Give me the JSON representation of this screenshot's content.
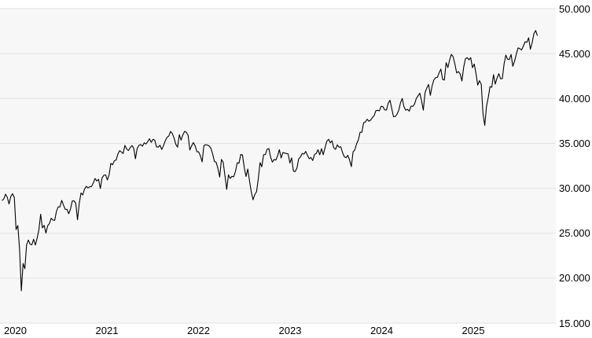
{
  "chart_data": {
    "type": "line",
    "title": "",
    "legend": "none",
    "grid": true,
    "colors": {
      "line": "#000000",
      "plot_background": "#f7f7f7",
      "gridline": "#e2e2e2",
      "page_background": "#ffffff",
      "text": "#000000"
    },
    "x_axis": {
      "ticks": [
        2020,
        2021,
        2022,
        2023,
        2024,
        2025
      ],
      "labels": [
        "2020",
        "2021",
        "2022",
        "2023",
        "2024",
        "2025"
      ]
    },
    "y_axis": {
      "position": "right",
      "min": 15000,
      "max": 50000,
      "tick_step": 5000,
      "ticks": [
        50000,
        45000,
        40000,
        35000,
        30000,
        25000,
        20000,
        15000
      ],
      "labels": [
        "50.000",
        "45.000",
        "40.000",
        "35.000",
        "30.000",
        "25.000",
        "20.000",
        "15.000"
      ]
    },
    "series": {
      "name": "index-price",
      "start_year": 2020.005,
      "step_years": 0.0191649,
      "values": [
        28635,
        28824,
        29348,
        28990,
        28256,
        29103,
        29398,
        28992,
        25409,
        25865,
        23186,
        18592,
        21637,
        21053,
        23719,
        24242,
        23775,
        23724,
        24331,
        23685,
        24465,
        25383,
        27111,
        25606,
        25871,
        25016,
        25827,
        26075,
        26672,
        26470,
        26428,
        27433,
        27931,
        27930,
        28654,
        28133,
        27666,
        27657,
        27174,
        27683,
        28587,
        28606,
        28336,
        26502,
        28323,
        29480,
        29263,
        29910,
        30218,
        30046,
        30179,
        30200,
        30606,
        31098,
        30814,
        30997,
        29983,
        31148,
        31458,
        31494,
        30932,
        31496,
        32779,
        32628,
        33073,
        33153,
        33801,
        34201,
        34043,
        33875,
        34778,
        34382,
        34208,
        34529,
        34756,
        34480,
        33290,
        34434,
        34786,
        34870,
        34688,
        35062,
        34935,
        35209,
        35515,
        35120,
        35456,
        35369,
        34608,
        34585,
        34798,
        34326,
        34746,
        35295,
        35677,
        35820,
        36328,
        36100,
        35602,
        34899,
        34580,
        35971,
        35365,
        35950,
        36338,
        36232,
        35912,
        34265,
        34725,
        35090,
        34738,
        34079,
        34059,
        33615,
        32944,
        34755,
        34861,
        34818,
        34721,
        34451,
        33811,
        32977,
        32899,
        32197,
        31262,
        33213,
        32900,
        31393,
        29889,
        31500,
        31097,
        31338,
        31288,
        31899,
        32845,
        32803,
        33761,
        33707,
        32283,
        31318,
        32152,
        30822,
        29590,
        28726,
        29297,
        29635,
        31083,
        32862,
        32403,
        33748,
        33746,
        34347,
        34429,
        33476,
        32920,
        33204,
        33147,
        33631,
        34303,
        33375,
        33978,
        33926,
        33869,
        33827,
        32817,
        33391,
        31910,
        31862,
        32238,
        33274,
        33485,
        33886,
        33809,
        34098,
        33674,
        33301,
        33427,
        33093,
        33763,
        33877,
        34299,
        33727,
        34408,
        33735,
        34509,
        35228,
        35459,
        35066,
        35281,
        34501,
        34347,
        34838,
        34577,
        34618,
        33964,
        33508,
        33408,
        33671,
        33127,
        32418,
        34061,
        34283,
        34947,
        35390,
        36248,
        36248,
        37305,
        37386,
        37690,
        37466,
        37593,
        37864,
        38109,
        38654,
        38671,
        38628,
        39132,
        39087,
        38723,
        38715,
        39475,
        39807,
        38904,
        37983,
        37986,
        38240,
        38676,
        39513,
        40004,
        39069,
        38686,
        38799,
        38589,
        39150,
        39119,
        39376,
        40001,
        40288,
        40589,
        39737,
        38703,
        40660,
        41175,
        41563,
        40345,
        41394,
        42063,
        42313,
        42353,
        42864,
        43276,
        42114,
        42052,
        43989,
        43445,
        44297,
        44911,
        44643,
        43828,
        42840,
        42992,
        42732,
        41938,
        43488,
        44424,
        44545,
        44303,
        44546,
        43428,
        43841,
        42802,
        41488,
        41985,
        41584,
        38315,
        37000,
        39142,
        40113,
        41317,
        41249,
        42655,
        41603,
        42270,
        42763,
        42198,
        42207,
        43819,
        44829,
        44372,
        44342,
        44902,
        43589,
        44176,
        44946,
        45632,
        45545,
        45401,
        45834,
        46315,
        46247,
        46758,
        45480,
        46190,
        47207,
        47563,
        46987
      ]
    }
  }
}
